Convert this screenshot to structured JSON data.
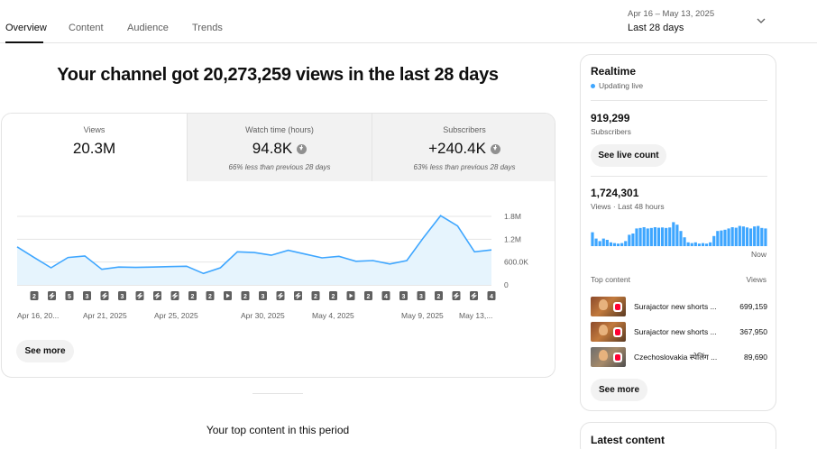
{
  "tabs": [
    {
      "label": "Overview",
      "active": true
    },
    {
      "label": "Content",
      "active": false
    },
    {
      "label": "Audience",
      "active": false
    },
    {
      "label": "Trends",
      "active": false
    }
  ],
  "date_range": {
    "range": "Apr 16 – May 13, 2025",
    "label": "Last 28 days"
  },
  "headline": "Your channel got 20,273,259 views in the last 28 days",
  "metrics": [
    {
      "label": "Views",
      "value": "20.3M",
      "note": ""
    },
    {
      "label": "Watch time (hours)",
      "value": "94.8K",
      "note": "66% less than previous 28 days"
    },
    {
      "label": "Subscribers",
      "value": "+240.4K",
      "note": "63% less than previous 28 days"
    }
  ],
  "chart_data": {
    "type": "area",
    "series": [
      {
        "values": [
          1.0,
          0.72,
          0.45,
          0.72,
          0.76,
          0.41,
          0.47,
          0.46,
          0.47,
          0.48,
          0.49,
          0.3,
          0.45,
          0.87,
          0.85,
          0.78,
          0.91,
          0.81,
          0.71,
          0.75,
          0.62,
          0.64,
          0.55,
          0.64,
          1.25,
          1.82,
          1.55,
          0.87,
          0.92
        ]
      }
    ],
    "x_tick_labels": [
      "Apr 16, 20...",
      "Apr 21, 2025",
      "Apr 25, 2025",
      "Apr 30, 2025",
      "May 4, 2025",
      "May 9, 2025",
      "May 13,..."
    ],
    "y_tick_labels": [
      "1.8M",
      "1.2M",
      "600.0K",
      "0"
    ],
    "y_unit": "millions",
    "ylim": [
      0,
      1.8
    ],
    "upload_markers": [
      "2",
      "s",
      "5",
      "3",
      "s",
      "3",
      "s",
      "s",
      "s",
      "2",
      "2",
      "p",
      "2",
      "3",
      "s",
      "s",
      "2",
      "2",
      "p",
      "2",
      "4",
      "3",
      "3",
      "2",
      "s",
      "s",
      "4"
    ],
    "color": "#3ea6ff",
    "fill_color": "#e6f4fd"
  },
  "see_more_label": "See more",
  "top_content_title": "Your top content in this period",
  "realtime": {
    "title": "Realtime",
    "status": "Updating live",
    "subscribers_value": "919,299",
    "subscribers_label": "Subscribers",
    "live_count_button": "See live count",
    "views_value": "1,724,301",
    "views_label": "Views · Last 48 hours",
    "bars": [
      0.55,
      0.3,
      0.2,
      0.3,
      0.25,
      0.15,
      0.12,
      0.1,
      0.12,
      0.2,
      0.45,
      0.5,
      0.7,
      0.72,
      0.75,
      0.7,
      0.72,
      0.75,
      0.73,
      0.74,
      0.72,
      0.74,
      0.95,
      0.85,
      0.6,
      0.35,
      0.15,
      0.12,
      0.15,
      0.1,
      0.12,
      0.1,
      0.15,
      0.4,
      0.6,
      0.62,
      0.65,
      0.7,
      0.75,
      0.73,
      0.8,
      0.78,
      0.74,
      0.7,
      0.78,
      0.8,
      0.72,
      0.7
    ],
    "now_label": "Now",
    "top_content_label": "Top content",
    "top_content_views_label": "Views",
    "top_content": [
      {
        "title": "Surajactor new shorts ...",
        "views": "699,159"
      },
      {
        "title": "Surajactor new shorts ...",
        "views": "367,950"
      },
      {
        "title": "Czechoslovakia स्पेलिंग ...",
        "views": "89,690"
      }
    ],
    "see_more_label": "See more"
  },
  "latest_content_title": "Latest content"
}
